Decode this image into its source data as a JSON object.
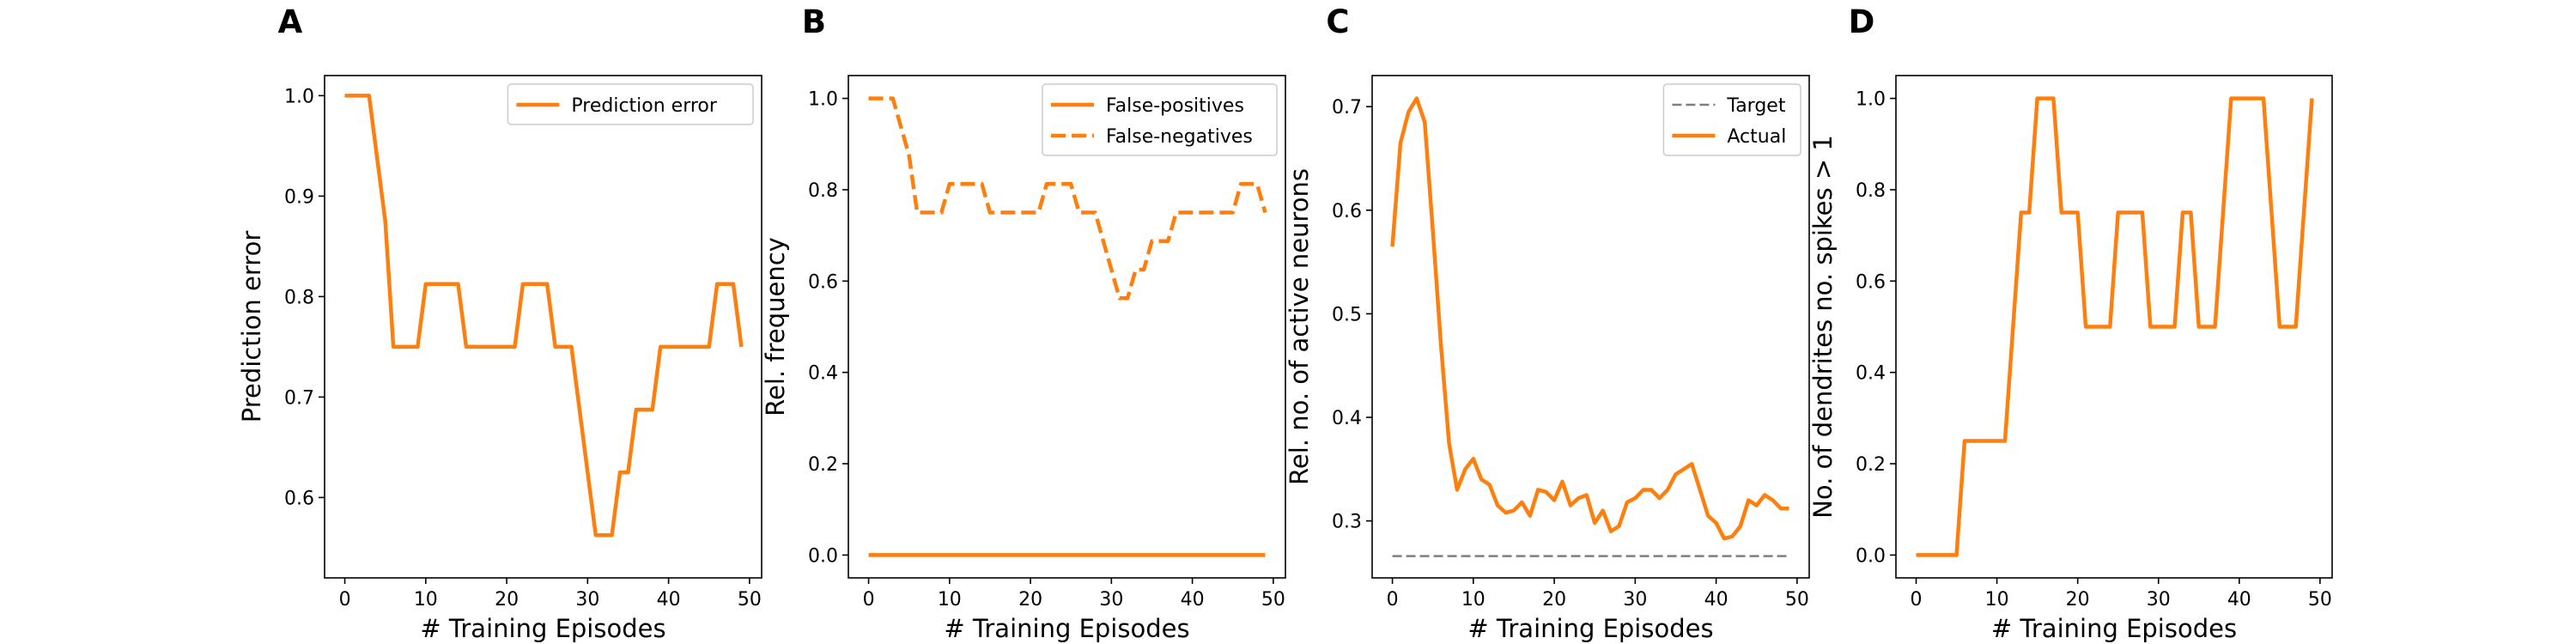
{
  "colors": {
    "series": "#ff7f0e",
    "target": "#7f7f7f",
    "axes": "#000000",
    "legend_border": "#cccccc"
  },
  "chart_data": [
    {
      "panel": "A",
      "type": "line",
      "title": "",
      "xlabel": "# Training Episodes",
      "ylabel": "Prediction error",
      "xlim": [
        -2.5,
        51.5
      ],
      "ylim": [
        0.52,
        1.02
      ],
      "xticks": [
        0,
        10,
        20,
        30,
        40,
        50
      ],
      "yticks": [
        0.6,
        0.7,
        0.8,
        0.9,
        1.0
      ],
      "ytick_labels": [
        "0.6",
        "0.7",
        "0.8",
        "0.9",
        "1.0"
      ],
      "grid": false,
      "legend": "top-right",
      "series": [
        {
          "name": "Prediction error",
          "style": "solid",
          "x": [
            0,
            1,
            2,
            3,
            4,
            5,
            6,
            7,
            8,
            9,
            10,
            11,
            12,
            13,
            14,
            15,
            16,
            17,
            18,
            19,
            20,
            21,
            22,
            23,
            24,
            25,
            26,
            27,
            28,
            29,
            30,
            31,
            32,
            33,
            34,
            35,
            36,
            37,
            38,
            39,
            40,
            41,
            42,
            43,
            44,
            45,
            46,
            47,
            48,
            49
          ],
          "values": [
            1.0,
            1.0,
            1.0,
            1.0,
            0.9375,
            0.875,
            0.75,
            0.75,
            0.75,
            0.75,
            0.8125,
            0.8125,
            0.8125,
            0.8125,
            0.8125,
            0.75,
            0.75,
            0.75,
            0.75,
            0.75,
            0.75,
            0.75,
            0.8125,
            0.8125,
            0.8125,
            0.8125,
            0.75,
            0.75,
            0.75,
            0.6875,
            0.625,
            0.5625,
            0.5625,
            0.5625,
            0.625,
            0.625,
            0.6875,
            0.6875,
            0.6875,
            0.75,
            0.75,
            0.75,
            0.75,
            0.75,
            0.75,
            0.75,
            0.8125,
            0.8125,
            0.8125,
            0.75
          ]
        }
      ]
    },
    {
      "panel": "B",
      "type": "line",
      "title": "",
      "xlabel": "# Training Episodes",
      "ylabel": "Rel. frequency",
      "xlim": [
        -2.5,
        51.5
      ],
      "ylim": [
        -0.05,
        1.05
      ],
      "xticks": [
        0,
        10,
        20,
        30,
        40,
        50
      ],
      "yticks": [
        0.0,
        0.2,
        0.4,
        0.6,
        0.8,
        1.0
      ],
      "ytick_labels": [
        "0.0",
        "0.2",
        "0.4",
        "0.6",
        "0.8",
        "1.0"
      ],
      "grid": false,
      "legend": "top-right",
      "series": [
        {
          "name": "False-positives",
          "style": "solid",
          "x": [
            0,
            49
          ],
          "values": [
            0.0,
            0.0
          ]
        },
        {
          "name": "False-negatives",
          "style": "dashed",
          "x": [
            0,
            1,
            2,
            3,
            4,
            5,
            6,
            7,
            8,
            9,
            10,
            11,
            12,
            13,
            14,
            15,
            16,
            17,
            18,
            19,
            20,
            21,
            22,
            23,
            24,
            25,
            26,
            27,
            28,
            29,
            30,
            31,
            32,
            33,
            34,
            35,
            36,
            37,
            38,
            39,
            40,
            41,
            42,
            43,
            44,
            45,
            46,
            47,
            48,
            49
          ],
          "values": [
            1.0,
            1.0,
            1.0,
            1.0,
            0.9375,
            0.875,
            0.75,
            0.75,
            0.75,
            0.75,
            0.8125,
            0.8125,
            0.8125,
            0.8125,
            0.8125,
            0.75,
            0.75,
            0.75,
            0.75,
            0.75,
            0.75,
            0.75,
            0.8125,
            0.8125,
            0.8125,
            0.8125,
            0.75,
            0.75,
            0.75,
            0.6875,
            0.625,
            0.5625,
            0.5625,
            0.625,
            0.625,
            0.6875,
            0.6875,
            0.6875,
            0.75,
            0.75,
            0.75,
            0.75,
            0.75,
            0.75,
            0.75,
            0.75,
            0.8125,
            0.8125,
            0.8125,
            0.75
          ]
        }
      ]
    },
    {
      "panel": "C",
      "type": "line",
      "title": "",
      "xlabel": "# Training Episodes",
      "ylabel": "Rel. no. of active neurons",
      "xlim": [
        -2.5,
        51.5
      ],
      "ylim": [
        0.245,
        0.73
      ],
      "xticks": [
        0,
        10,
        20,
        30,
        40,
        50
      ],
      "yticks": [
        0.3,
        0.4,
        0.5,
        0.6,
        0.7
      ],
      "ytick_labels": [
        "0.3",
        "0.4",
        "0.5",
        "0.6",
        "0.7"
      ],
      "grid": false,
      "legend": "top-right",
      "series": [
        {
          "name": "Target",
          "style": "dashed-thin",
          "x": [
            0,
            49
          ],
          "values": [
            0.266,
            0.266
          ]
        },
        {
          "name": "Actual",
          "style": "solid",
          "x": [
            0,
            1,
            2,
            3,
            4,
            5,
            6,
            7,
            8,
            9,
            10,
            11,
            12,
            13,
            14,
            15,
            16,
            17,
            18,
            19,
            20,
            21,
            22,
            23,
            24,
            25,
            26,
            27,
            28,
            29,
            30,
            31,
            32,
            33,
            34,
            35,
            36,
            37,
            38,
            39,
            40,
            41,
            42,
            43,
            44,
            45,
            46,
            47,
            48,
            49
          ],
          "values": [
            0.565,
            0.665,
            0.695,
            0.708,
            0.685,
            0.58,
            0.47,
            0.375,
            0.33,
            0.35,
            0.36,
            0.34,
            0.335,
            0.315,
            0.308,
            0.31,
            0.318,
            0.305,
            0.33,
            0.328,
            0.32,
            0.338,
            0.315,
            0.322,
            0.325,
            0.298,
            0.31,
            0.29,
            0.295,
            0.318,
            0.322,
            0.33,
            0.33,
            0.322,
            0.33,
            0.345,
            0.35,
            0.355,
            0.33,
            0.305,
            0.298,
            0.283,
            0.285,
            0.295,
            0.32,
            0.315,
            0.325,
            0.32,
            0.312,
            0.312
          ]
        }
      ]
    },
    {
      "panel": "D",
      "type": "line",
      "title": "",
      "xlabel": "# Training Episodes",
      "ylabel": "No. of dendrites no. spikes > 1",
      "xlim": [
        -2.5,
        51.5
      ],
      "ylim": [
        -0.05,
        1.05
      ],
      "xticks": [
        0,
        10,
        20,
        30,
        40,
        50
      ],
      "yticks": [
        0.0,
        0.2,
        0.4,
        0.6,
        0.8,
        1.0
      ],
      "ytick_labels": [
        "0.0",
        "0.2",
        "0.4",
        "0.6",
        "0.8",
        "1.0"
      ],
      "grid": false,
      "legend": "none",
      "series": [
        {
          "name": "",
          "style": "solid",
          "x": [
            0,
            1,
            2,
            3,
            4,
            5,
            6,
            7,
            8,
            9,
            10,
            11,
            12,
            13,
            14,
            15,
            16,
            17,
            18,
            19,
            20,
            21,
            22,
            23,
            24,
            25,
            26,
            27,
            28,
            29,
            30,
            31,
            32,
            33,
            34,
            35,
            36,
            37,
            38,
            39,
            40,
            41,
            42,
            43,
            44,
            45,
            46,
            47,
            48,
            49
          ],
          "values": [
            0.0,
            0.0,
            0.0,
            0.0,
            0.0,
            0.0,
            0.25,
            0.25,
            0.25,
            0.25,
            0.25,
            0.25,
            0.5,
            0.75,
            0.75,
            1.0,
            1.0,
            1.0,
            0.75,
            0.75,
            0.75,
            0.5,
            0.5,
            0.5,
            0.5,
            0.75,
            0.75,
            0.75,
            0.75,
            0.5,
            0.5,
            0.5,
            0.5,
            0.75,
            0.75,
            0.5,
            0.5,
            0.5,
            0.75,
            1.0,
            1.0,
            1.0,
            1.0,
            1.0,
            0.75,
            0.5,
            0.5,
            0.5,
            0.75,
            1.0
          ]
        }
      ]
    }
  ]
}
